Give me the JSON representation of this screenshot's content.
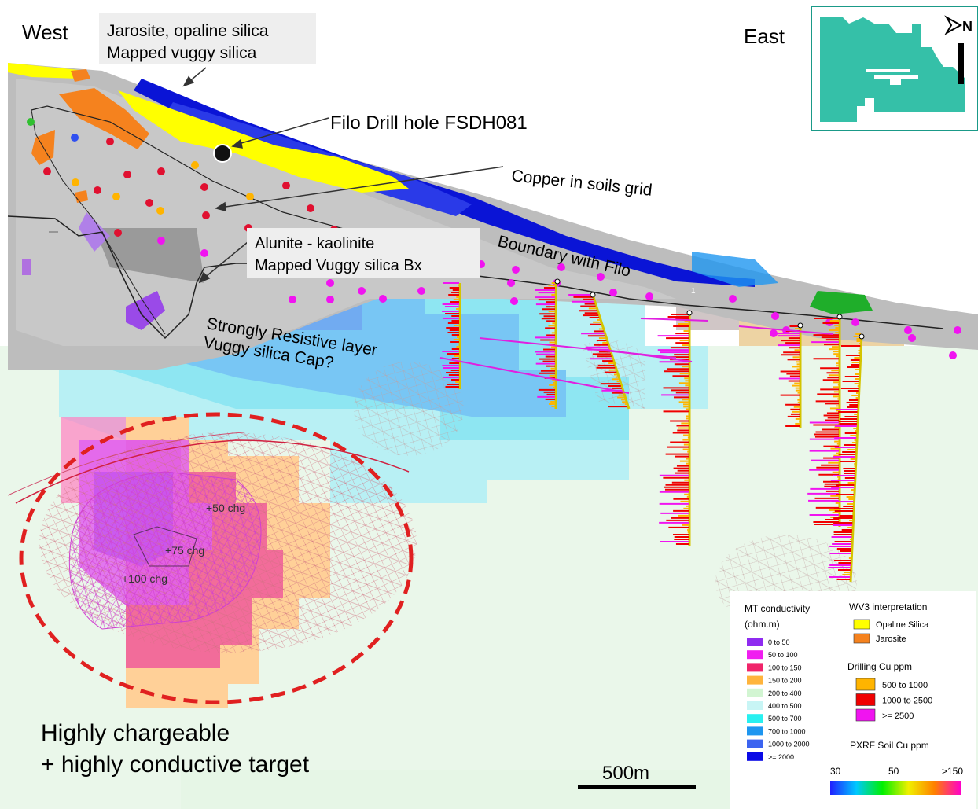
{
  "labels": {
    "west": "West",
    "east": "East",
    "north": "N",
    "jarosite_box_line1": "Jarosite, opaline silica",
    "jarosite_box_line2": "Mapped vuggy silica",
    "drill_hole": "Filo Drill hole FSDH081",
    "copper_soils": "Copper in soils grid",
    "alunite_line1": "Alunite - kaolinite",
    "alunite_line2": "Mapped Vuggy silica Bx",
    "boundary": "Boundary with Filo",
    "resistive_line1": "Strongly Resistive layer",
    "resistive_line2": "Vuggy silica Cap?",
    "chg50": "+50 chg",
    "chg75": "+75 chg",
    "chg100": "+100 chg",
    "target_line1": "Highly chargeable",
    "target_line2": "+ highly conductive target",
    "scale": "500m",
    "marker_1": "1"
  },
  "legend": {
    "mt_title_line1": "MT conductivity",
    "mt_title_line2": "(ohm.m)",
    "mt_items": [
      {
        "label": "0 to 50",
        "color": "#8f2bf0"
      },
      {
        "label": "50 to 100",
        "color": "#f01ef0"
      },
      {
        "label": "100 to 150",
        "color": "#f0246a"
      },
      {
        "label": "150 to 200",
        "color": "#ffb43c"
      },
      {
        "label": "200 to 400",
        "color": "#d2f5d2"
      },
      {
        "label": "400 to 500",
        "color": "#c8f5f5"
      },
      {
        "label": "500 to 700",
        "color": "#28f0f0"
      },
      {
        "label": "700 to 1000",
        "color": "#1e96f0"
      },
      {
        "label": "1000 to 2000",
        "color": "#3c64f0"
      },
      {
        "label": ">= 2000",
        "color": "#0a0ae6"
      }
    ],
    "wv3_title": "WV3 interpretation",
    "wv3_items": [
      {
        "label": "Opaline Silica",
        "color": "#ffff00"
      },
      {
        "label": "Jarosite",
        "color": "#f5821e"
      }
    ],
    "drill_title": "Drilling Cu ppm",
    "drill_items": [
      {
        "label": "500 to 1000",
        "color": "#ffb400"
      },
      {
        "label": "1000 to 2500",
        "color": "#f00000"
      },
      {
        "label": ">= 2500",
        "color": "#f014f0"
      }
    ],
    "soil_title": "PXRF Soil Cu ppm",
    "soil_ticks": [
      "30",
      "50",
      ">150"
    ]
  }
}
